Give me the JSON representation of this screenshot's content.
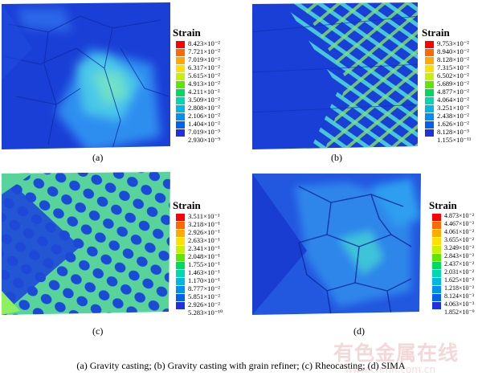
{
  "panels": [
    {
      "label": "(a)",
      "legend_title": "Strain",
      "legend_values": [
        "8.423×10⁻²",
        "7.721×10⁻²",
        "7.019×10⁻²",
        "6.317×10⁻²",
        "5.615×10⁻²",
        "4.913×10⁻²",
        "4.211×10⁻²",
        "3.509×10⁻²",
        "2.808×10⁻²",
        "2.106×10⁻²",
        "1.404×10⁻²",
        "7.019×10⁻³",
        "2.930×10⁻⁹"
      ]
    },
    {
      "label": "(b)",
      "legend_title": "Strain",
      "legend_values": [
        "9.753×10⁻²",
        "8.940×10⁻²",
        "8.128×10⁻²",
        "7.315×10⁻²",
        "6.502×10⁻²",
        "5.689×10⁻²",
        "4.877×10⁻²",
        "4.064×10⁻²",
        "3.251×10⁻²",
        "2.438×10⁻²",
        "1.626×10⁻²",
        "8.128×10⁻³",
        "1.155×10⁻¹¹"
      ]
    },
    {
      "label": "(c)",
      "legend_title": "Strain",
      "legend_values": [
        "3.511×10⁻¹",
        "3.218×10⁻¹",
        "2.926×10⁻¹",
        "2.633×10⁻¹",
        "2.341×10⁻¹",
        "2.048×10⁻¹",
        "1.755×10⁻¹",
        "1.463×10⁻¹",
        "1.170×10⁻¹",
        "8.777×10⁻²",
        "5.851×10⁻²",
        "2.926×10⁻²",
        "5.283×10⁻¹⁰"
      ]
    },
    {
      "label": "(d)",
      "legend_title": "Strain",
      "legend_values": [
        "4.873×10⁻²",
        "4.467×10⁻²",
        "4.061×10⁻²",
        "3.655×10⁻²",
        "3.249×10⁻²",
        "2.843×10⁻²",
        "2.437×10⁻²",
        "2.031×10⁻²",
        "1.625×10⁻²",
        "1.218×10⁻²",
        "8.124×10⁻³",
        "4.063×10⁻³",
        "1.852×10⁻⁹"
      ]
    }
  ],
  "legend_colors": [
    "#ff0000",
    "#ff6a00",
    "#ffaa00",
    "#ffe000",
    "#c8f000",
    "#5ce600",
    "#00d860",
    "#00d8b0",
    "#00b8e0",
    "#0090f0",
    "#0060f0",
    "#2030e0",
    "#1010c8"
  ],
  "caption": "(a)  Gravity  casting;  (b)  Gravity  casting with grain refiner; (c) Rheocasting; (d) SIMA",
  "watermark": {
    "text": "有色金属在线",
    "url": "www.cnmn.com.cn"
  }
}
